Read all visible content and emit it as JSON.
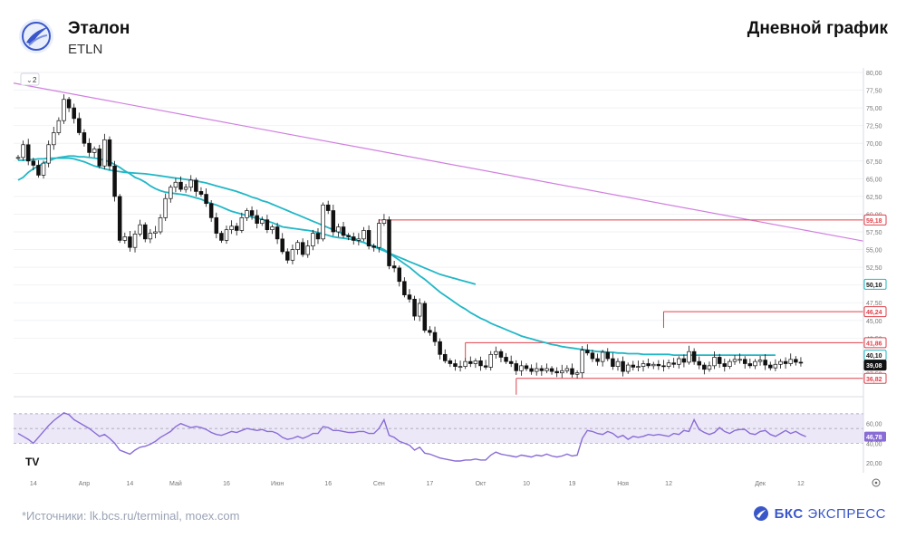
{
  "header": {
    "title": "Эталон",
    "ticker": "ETLN",
    "chart_title": "Дневной график"
  },
  "footer": {
    "source": "*Источники: lk.bcs.ru/terminal, moex.com",
    "brand_bold": "БКС",
    "brand_rest": " ЭКСПРЕСС"
  },
  "colors": {
    "up": "#ffffff",
    "down": "#111111",
    "ma_fast": "#22b7c6",
    "ma_slow": "#22b7c6",
    "trend": "#d17fe0",
    "level": "#e0404a",
    "rsi": "#8a6cd6",
    "rsi_band": "#ece8f8",
    "brand": "#3a57c9"
  },
  "controls": {
    "collapse_label": "2",
    "tv_logo": "TV"
  },
  "chart_data": {
    "type": "candlestick",
    "ylim": [
      35,
      80
    ],
    "y_ticks": [
      "80,00",
      "77,50",
      "75,00",
      "72,50",
      "70,00",
      "67,50",
      "65,00",
      "62,50",
      "60,00",
      "57,50",
      "55,00",
      "52,50",
      "50,00",
      "47,50",
      "45,00",
      "42,50",
      "37,50"
    ],
    "y_tick_values": [
      80,
      77.5,
      75,
      72.5,
      70,
      67.5,
      65,
      62.5,
      60,
      57.5,
      55,
      52.5,
      50,
      47.5,
      45,
      42.5,
      37.5
    ],
    "x_labels": [
      {
        "label": "14",
        "i": 3
      },
      {
        "label": "Апр",
        "i": 13
      },
      {
        "label": "14",
        "i": 22
      },
      {
        "label": "Май",
        "i": 31
      },
      {
        "label": "16",
        "i": 41
      },
      {
        "label": "Июн",
        "i": 51
      },
      {
        "label": "16",
        "i": 61
      },
      {
        "label": "Сен",
        "i": 71
      },
      {
        "label": "17",
        "i": 81
      },
      {
        "label": "Окт",
        "i": 91
      },
      {
        "label": "10",
        "i": 100
      },
      {
        "label": "19",
        "i": 109
      },
      {
        "label": "Ноя",
        "i": 119
      },
      {
        "label": "12",
        "i": 128
      },
      {
        "label": "Дек",
        "i": 146
      },
      {
        "label": "12",
        "i": 154
      }
    ],
    "price_labels": [
      {
        "value": 59.18,
        "text": "59,18",
        "kind": "level"
      },
      {
        "value": 50.1,
        "text": "50,10",
        "kind": "ma_slow"
      },
      {
        "value": 46.24,
        "text": "46,24",
        "kind": "level"
      },
      {
        "value": 41.86,
        "text": "41,86",
        "kind": "level"
      },
      {
        "value": 40.1,
        "text": "40,10",
        "kind": "ma_fast"
      },
      {
        "value": 39.08,
        "text": "39,08",
        "kind": "last"
      },
      {
        "value": 36.82,
        "text": "36,82",
        "kind": "level"
      }
    ],
    "levels": [
      {
        "value": 59.18,
        "from": 71
      },
      {
        "value": 46.24,
        "from": 127
      },
      {
        "value": 41.86,
        "from": 88
      },
      {
        "value": 36.82,
        "from": 98
      }
    ],
    "trendline": {
      "from": [
        0,
        78.5
      ],
      "to": [
        156,
        56.2
      ]
    },
    "close": [
      68,
      69.8,
      67.5,
      66.9,
      65.5,
      67.2,
      69.8,
      71.5,
      73.2,
      76.2,
      75,
      73.5,
      71.5,
      70,
      68.7,
      69.2,
      66.8,
      70.5,
      66.8,
      62.5,
      56.3,
      56.8,
      55.3,
      57.2,
      58.5,
      56.5,
      57.3,
      57.5,
      59.5,
      62.2,
      63.8,
      64.5,
      63.5,
      63.8,
      64.8,
      63.2,
      62.8,
      61.5,
      59.5,
      57.3,
      56.3,
      57.8,
      58.3,
      57.7,
      59.5,
      60.5,
      59.8,
      58.7,
      59.2,
      57.8,
      58.2,
      56.5,
      54.7,
      53.5,
      55,
      56,
      54.3,
      55.5,
      57.3,
      56.5,
      61.3,
      60.5,
      57.5,
      58.2,
      57,
      56.8,
      56.3,
      56.5,
      57.7,
      55.5,
      55.3,
      58.7,
      59.2,
      52.7,
      52.4,
      50.5,
      48.6,
      48,
      45.6,
      47.4,
      43.6,
      43.3,
      42,
      40.2,
      39.3,
      38.9,
      38.5,
      38.5,
      39.2,
      38.9,
      39.3,
      38.6,
      38.4,
      40.2,
      40.6,
      39.8,
      39.2,
      38.9,
      37.9,
      38.6,
      38.2,
      37.8,
      38.2,
      37.9,
      38.2,
      37.8,
      37.6,
      37.9,
      38.2,
      37.4,
      37.6,
      40.8,
      40.4,
      39.6,
      39.2,
      40.5,
      39.6,
      38.5,
      39.2,
      37.8,
      38.7,
      38.4,
      38.5,
      38.9,
      38.6,
      38.8,
      38.6,
      38.5,
      39,
      38.8,
      39.6,
      39.1,
      40.6,
      39.2,
      38.7,
      38.1,
      38.6,
      39.8,
      38.9,
      38.5,
      39.2,
      39.5,
      39.5,
      38.9,
      38.6,
      39.2,
      39.4,
      38.7,
      38.3,
      38.8,
      39.2,
      38.9,
      39.5,
      39.1,
      39.08
    ],
    "ma_fast": [
      64.8,
      65.2,
      65.9,
      66.4,
      66.8,
      67.2,
      67.5,
      67.8,
      68.0,
      68.1,
      68.2,
      68.2,
      68.1,
      68.1,
      68.0,
      67.9,
      67.8,
      67.6,
      67.4,
      67.0,
      66.6,
      66.1,
      65.7,
      65.2,
      64.9,
      64.5,
      64.0,
      63.6,
      63.3,
      63.1,
      63.0,
      62.9,
      62.8,
      62.7,
      62.5,
      62.3,
      62.1,
      61.8,
      61.5,
      61.3,
      61.0,
      60.7,
      60.4,
      60.2,
      60.0,
      59.8,
      59.6,
      59.4,
      59.3,
      59.0,
      58.8,
      58.5,
      58.2,
      58.1,
      58.0,
      57.9,
      57.8,
      57.7,
      57.6,
      57.4,
      57.2,
      57.0,
      56.8,
      56.7,
      56.6,
      56.5,
      56.4,
      56.2,
      56.0,
      55.7,
      55.5,
      55.3,
      55.0,
      54.5,
      54.0,
      53.5,
      53.0,
      52.5,
      51.9,
      51.3,
      50.8,
      50.2,
      49.6,
      49.0,
      48.5,
      48.0,
      47.5,
      47.0,
      46.6,
      46.1,
      45.7,
      45.3,
      45.0,
      44.6,
      44.3,
      44.0,
      43.7,
      43.4,
      43.1,
      42.8,
      42.6,
      42.4,
      42.2,
      42.0,
      41.8,
      41.6,
      41.5,
      41.3,
      41.2,
      41.1,
      41.0,
      40.9,
      40.8,
      40.7,
      40.6,
      40.6,
      40.5,
      40.5,
      40.4,
      40.4,
      40.3,
      40.3,
      40.3,
      40.2,
      40.2,
      40.2,
      40.2,
      40.2,
      40.2,
      40.1,
      40.1,
      40.1,
      40.1,
      40.1,
      40.1,
      40.1,
      40.1,
      40.1,
      40.1,
      40.1,
      40.1,
      40.1,
      40.1,
      40.1,
      40.1,
      40.1,
      40.1,
      40.1,
      40.1,
      40.1
    ],
    "ma_slow_start": 0,
    "ma_slow": [
      67.6,
      67.6,
      67.7,
      67.7,
      67.8,
      67.8,
      67.9,
      67.9,
      67.9,
      67.9,
      67.9,
      67.8,
      67.6,
      67.4,
      67.1,
      66.8,
      66.6,
      66.4,
      66.2,
      66.1,
      66.0,
      65.9,
      65.85,
      65.8,
      65.75,
      65.7,
      65.6,
      65.5,
      65.4,
      65.3,
      65.2,
      65.1,
      65.0,
      64.9,
      64.8,
      64.7,
      64.55,
      64.4,
      64.2,
      64.0,
      63.8,
      63.6,
      63.4,
      63.2,
      62.95,
      62.7,
      62.4,
      62.2,
      61.9,
      61.7,
      61.4,
      61.1,
      60.8,
      60.5,
      60.2,
      59.9,
      59.6,
      59.3,
      59.0,
      58.7,
      58.4,
      58.1,
      57.8,
      57.5,
      57.2,
      56.9,
      56.6,
      56.3,
      56.0,
      55.7,
      55.4,
      55.1,
      54.8,
      54.5,
      54.2,
      53.9,
      53.6,
      53.3,
      53.0,
      52.7,
      52.4,
      52.1,
      51.8,
      51.5,
      51.3,
      51.1,
      50.9,
      50.7,
      50.5,
      50.3,
      50.1
    ],
    "rsi": {
      "ylim": [
        10,
        80
      ],
      "band": [
        40,
        70
      ],
      "y_ticks": [
        "60,00",
        "40,00",
        "20,00"
      ],
      "y_tick_values": [
        60,
        40,
        20
      ],
      "last_label": "46,78",
      "last_value": 46.78,
      "values": [
        50,
        47,
        44,
        40,
        46,
        52,
        58,
        63,
        67,
        71,
        69,
        64,
        61,
        58,
        55,
        51,
        47,
        49,
        45,
        40,
        33,
        31,
        29,
        33,
        36,
        37,
        39,
        42,
        46,
        49,
        52,
        57,
        60,
        58,
        56,
        57,
        56,
        54,
        51,
        49,
        48,
        50,
        52,
        51,
        53,
        55,
        54,
        53,
        54,
        52,
        52,
        50,
        46,
        44,
        45,
        47,
        45,
        47,
        50,
        50,
        57,
        56,
        53,
        53,
        52,
        51,
        51,
        52,
        52,
        50,
        50,
        55,
        64,
        48,
        46,
        42,
        40,
        38,
        33,
        36,
        30,
        29,
        27,
        25,
        24,
        23,
        22,
        22,
        23,
        23,
        24,
        23,
        23,
        28,
        31,
        29,
        28,
        27,
        26,
        28,
        27,
        26,
        28,
        27,
        29,
        27,
        26,
        27,
        29,
        27,
        28,
        45,
        53,
        52,
        50,
        49,
        52,
        50,
        46,
        48,
        44,
        47,
        46,
        47,
        49,
        48,
        49,
        48,
        47,
        50,
        49,
        53,
        52,
        64,
        54,
        51,
        49,
        51,
        56,
        52,
        50,
        53,
        54,
        54,
        50,
        49,
        52,
        53,
        49,
        47,
        50,
        53,
        50,
        52,
        49,
        46.78
      ]
    }
  }
}
